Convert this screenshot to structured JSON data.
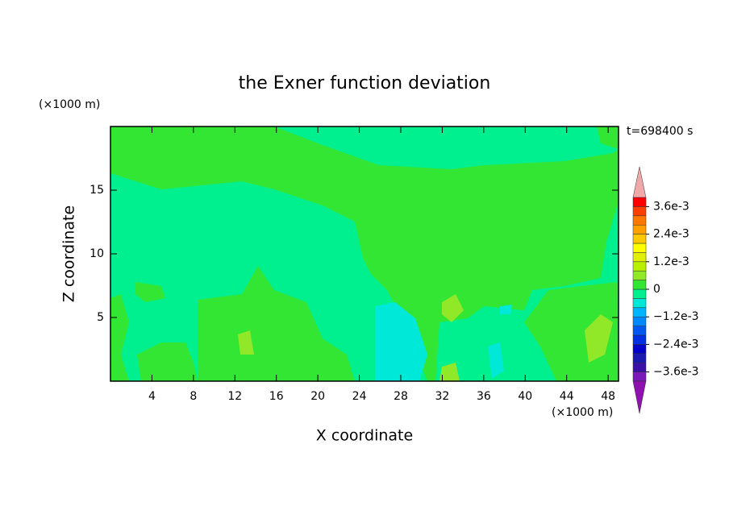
{
  "chart_data": {
    "type": "contour",
    "title": "the Exner function deviation",
    "x_label": "X coordinate",
    "y_label": "Z coordinate",
    "x_unit": "(×1000 m)",
    "y_unit": "(×1000 m)",
    "time_label": "t=698400 s",
    "xlim": [
      0,
      49
    ],
    "xticks": [
      4,
      8,
      12,
      16,
      20,
      24,
      28,
      32,
      36,
      40,
      44,
      48
    ],
    "ylim": [
      0,
      20
    ],
    "yticks": [
      5,
      10,
      15
    ],
    "colorbar": {
      "levels": [
        -0.004,
        -0.0036,
        -0.0032,
        -0.0028,
        -0.0024,
        -0.002,
        -0.0016,
        -0.0012,
        -0.0008,
        -0.0004,
        0,
        0.0004,
        0.0008,
        0.0012,
        0.0016,
        0.002,
        0.0024,
        0.0028,
        0.0032,
        0.0036,
        0.004
      ],
      "colors": [
        "#7a1ab8",
        "#3a10a8",
        "#1a1ab0",
        "#0000c8",
        "#0030e0",
        "#0058f0",
        "#0088ff",
        "#00b4ff",
        "#00e8d8",
        "#00f090",
        "#33e633",
        "#90e828",
        "#b8f000",
        "#e0f000",
        "#ffff00",
        "#ffc800",
        "#ffa000",
        "#ff7800",
        "#ff4000",
        "#ff0000"
      ],
      "under_color": "#9010b0",
      "over_color": "#f0a8a8",
      "ticks": [
        {
          "value": -0.0036,
          "label": "−3.6e-3"
        },
        {
          "value": -0.0024,
          "label": "−2.4e-3"
        },
        {
          "value": -0.0012,
          "label": "−1.2e-3"
        },
        0,
        {
          "value": 0.0012,
          "label": "1.2e-3"
        },
        {
          "value": 0.0024,
          "label": "2.4e-3"
        },
        {
          "value": 0.0036,
          "label": "3.6e-3"
        }
      ]
    }
  }
}
